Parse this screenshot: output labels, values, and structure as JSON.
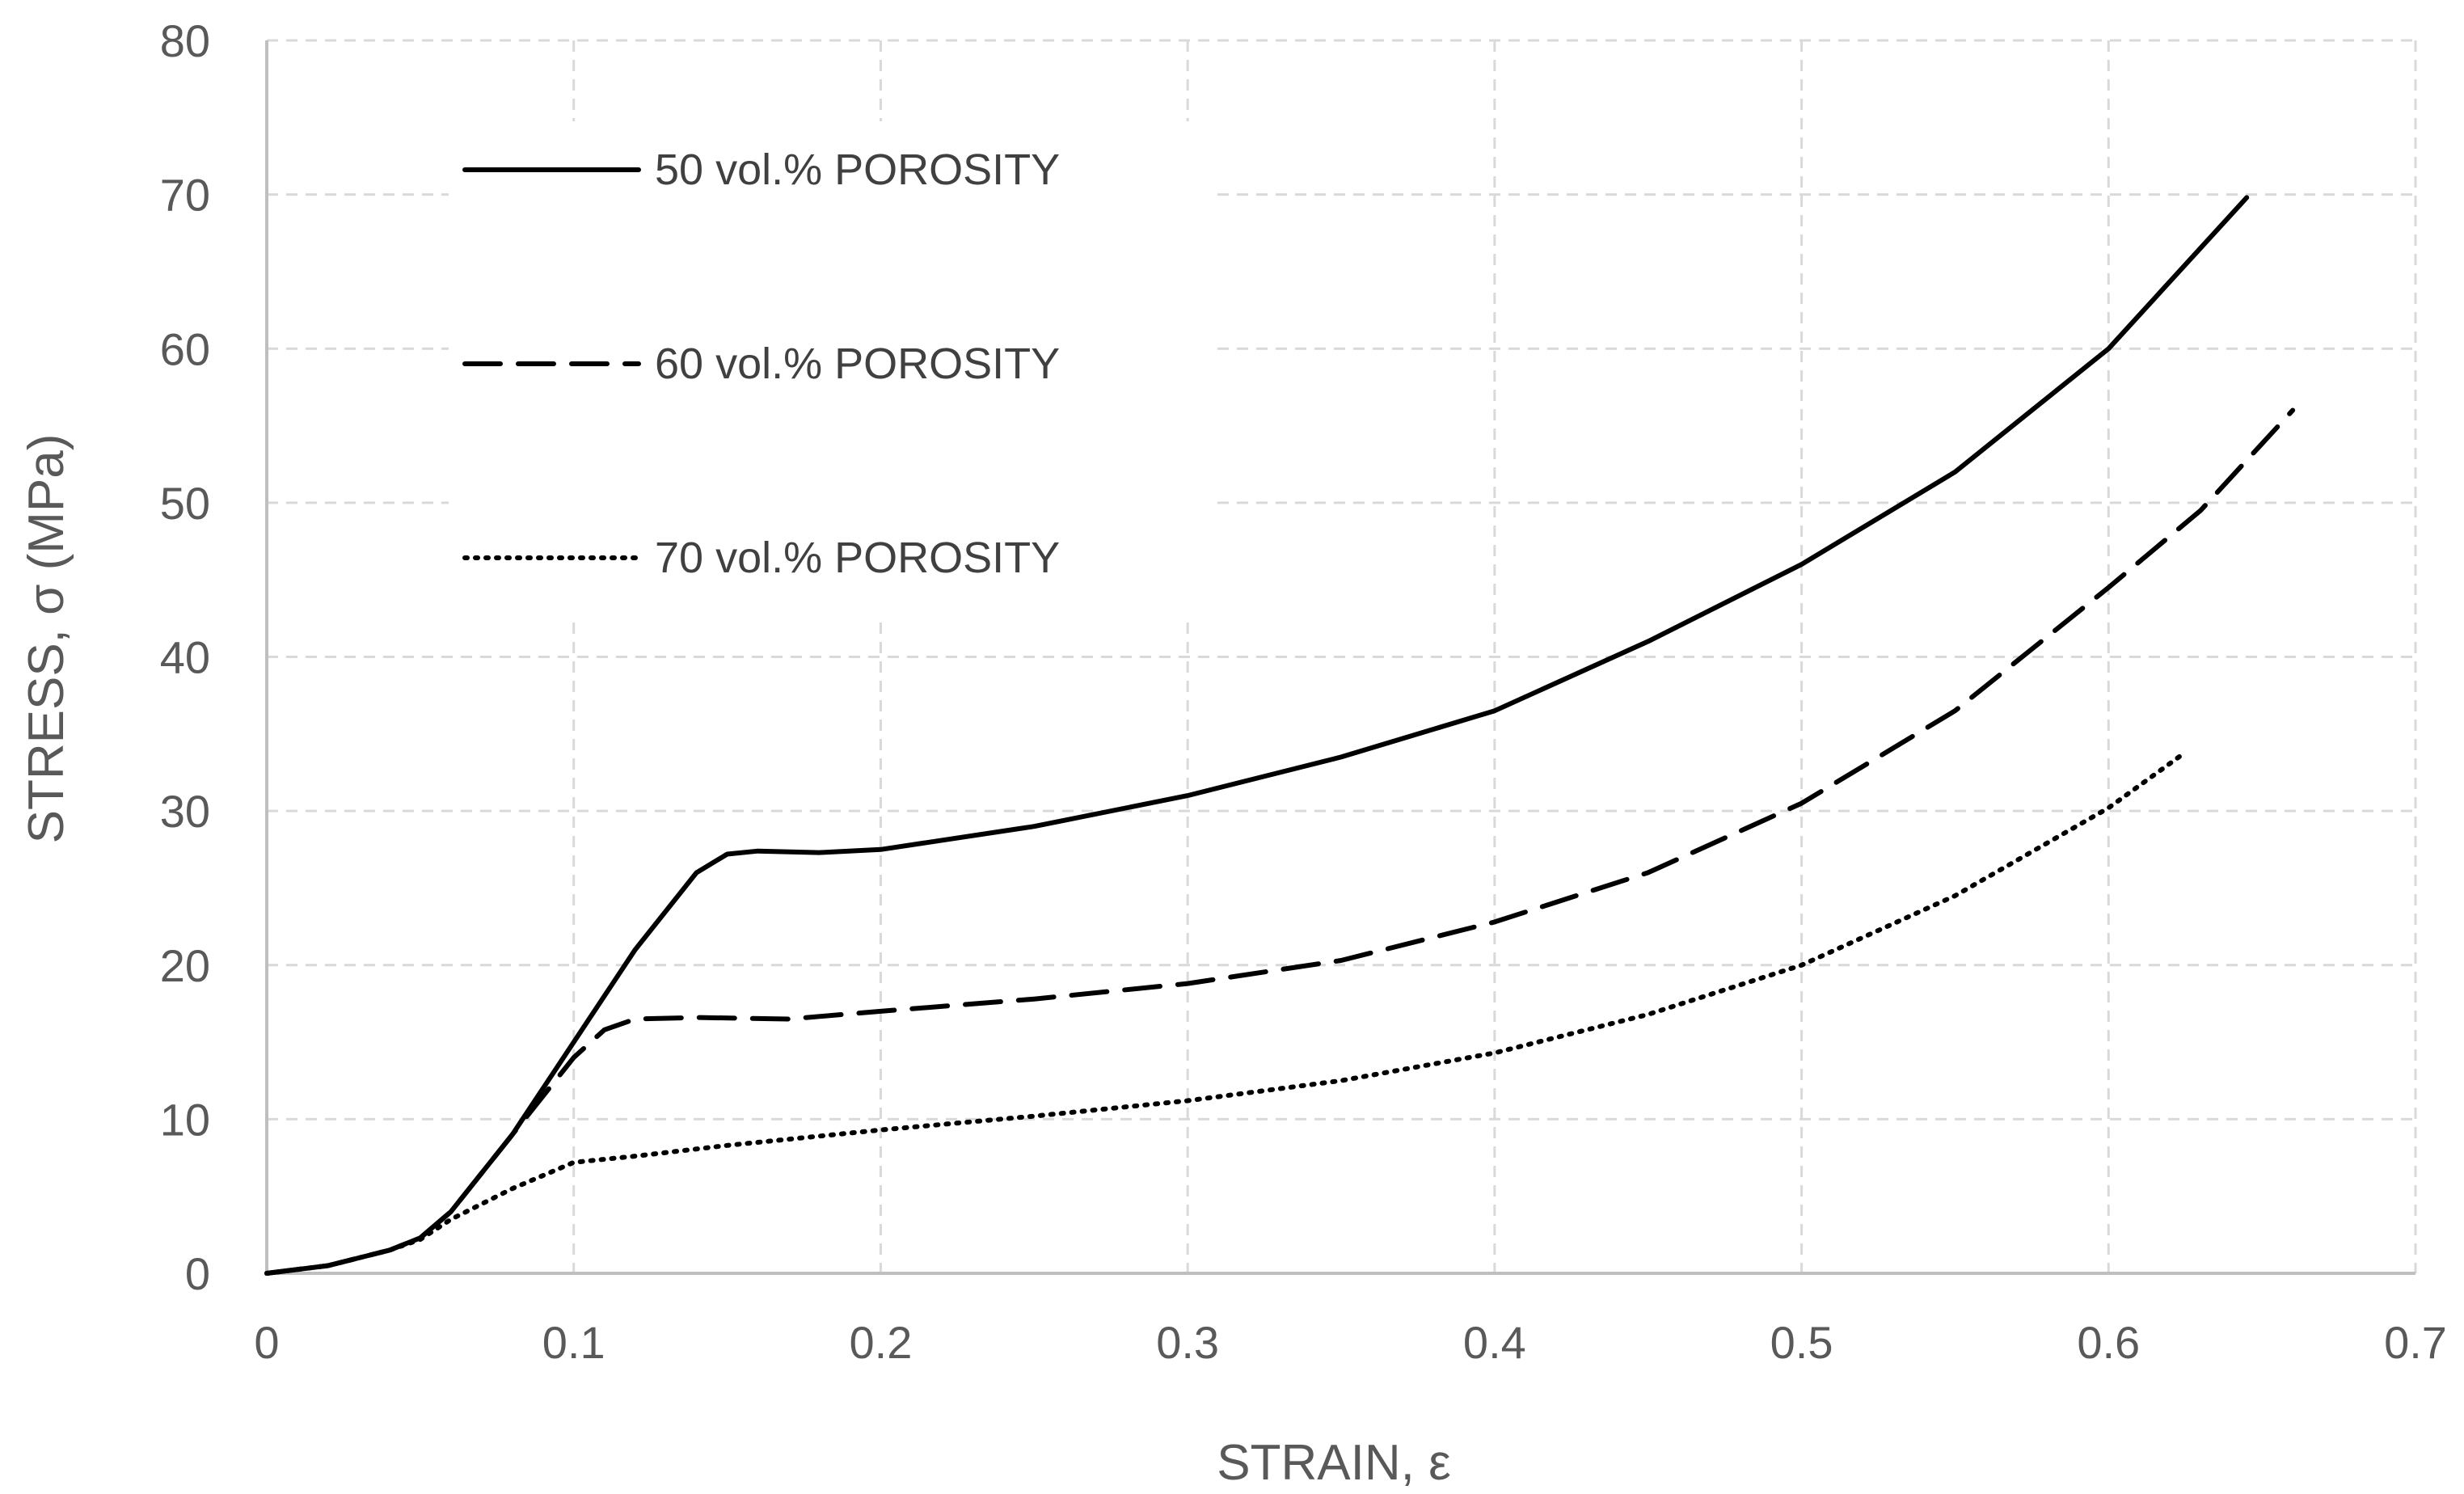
{
  "chart_data": {
    "type": "line",
    "title": "",
    "xlabel": "STRAIN, ε",
    "ylabel": "STRESS, σ  (MPa)",
    "xlim": [
      0,
      0.7
    ],
    "ylim": [
      0,
      80
    ],
    "x_ticks": [
      0,
      0.1,
      0.2,
      0.3,
      0.4,
      0.5,
      0.6,
      0.7
    ],
    "x_tick_labels": [
      "0",
      "0.1",
      "0.2",
      "0.3",
      "0.4",
      "0.5",
      "0.6",
      "0.7"
    ],
    "y_ticks": [
      0,
      10,
      20,
      30,
      40,
      50,
      60,
      70,
      80
    ],
    "y_tick_labels": [
      "0",
      "10",
      "20",
      "30",
      "40",
      "50",
      "60",
      "70",
      "80"
    ],
    "grid": true,
    "legend_position": "top-left",
    "series": [
      {
        "name": "50 vol.% POROSITY",
        "line_style": "solid",
        "color": "#000000",
        "points": [
          [
            0,
            0
          ],
          [
            0.02,
            0.5
          ],
          [
            0.04,
            1.5
          ],
          [
            0.05,
            2.3
          ],
          [
            0.06,
            4
          ],
          [
            0.08,
            9
          ],
          [
            0.1,
            15
          ],
          [
            0.12,
            21
          ],
          [
            0.14,
            26
          ],
          [
            0.15,
            27.2
          ],
          [
            0.16,
            27.4
          ],
          [
            0.18,
            27.3
          ],
          [
            0.2,
            27.5
          ],
          [
            0.25,
            29
          ],
          [
            0.3,
            31
          ],
          [
            0.35,
            33.5
          ],
          [
            0.4,
            36.5
          ],
          [
            0.45,
            41
          ],
          [
            0.5,
            46
          ],
          [
            0.55,
            52
          ],
          [
            0.6,
            60
          ],
          [
            0.645,
            69.8
          ]
        ]
      },
      {
        "name": "60 vol.% POROSITY",
        "line_style": "dashed",
        "color": "#000000",
        "points": [
          [
            0,
            0
          ],
          [
            0.02,
            0.5
          ],
          [
            0.04,
            1.5
          ],
          [
            0.05,
            2.3
          ],
          [
            0.06,
            4
          ],
          [
            0.08,
            9
          ],
          [
            0.1,
            14
          ],
          [
            0.11,
            15.8
          ],
          [
            0.12,
            16.5
          ],
          [
            0.14,
            16.6
          ],
          [
            0.17,
            16.5
          ],
          [
            0.2,
            17
          ],
          [
            0.25,
            17.8
          ],
          [
            0.3,
            18.8
          ],
          [
            0.35,
            20.3
          ],
          [
            0.4,
            22.8
          ],
          [
            0.45,
            26
          ],
          [
            0.5,
            30.5
          ],
          [
            0.55,
            36.5
          ],
          [
            0.6,
            44.5
          ],
          [
            0.63,
            49.5
          ],
          [
            0.66,
            56
          ]
        ]
      },
      {
        "name": "70 vol.% POROSITY",
        "line_style": "dotted",
        "color": "#000000",
        "points": [
          [
            0,
            0
          ],
          [
            0.02,
            0.5
          ],
          [
            0.04,
            1.5
          ],
          [
            0.05,
            2.2
          ],
          [
            0.06,
            3.5
          ],
          [
            0.08,
            5.5
          ],
          [
            0.1,
            7.2
          ],
          [
            0.12,
            7.6
          ],
          [
            0.15,
            8.3
          ],
          [
            0.2,
            9.3
          ],
          [
            0.25,
            10.2
          ],
          [
            0.3,
            11.2
          ],
          [
            0.35,
            12.5
          ],
          [
            0.4,
            14.3
          ],
          [
            0.45,
            16.8
          ],
          [
            0.5,
            20
          ],
          [
            0.55,
            24.5
          ],
          [
            0.6,
            30.2
          ],
          [
            0.625,
            33.8
          ]
        ]
      }
    ]
  }
}
